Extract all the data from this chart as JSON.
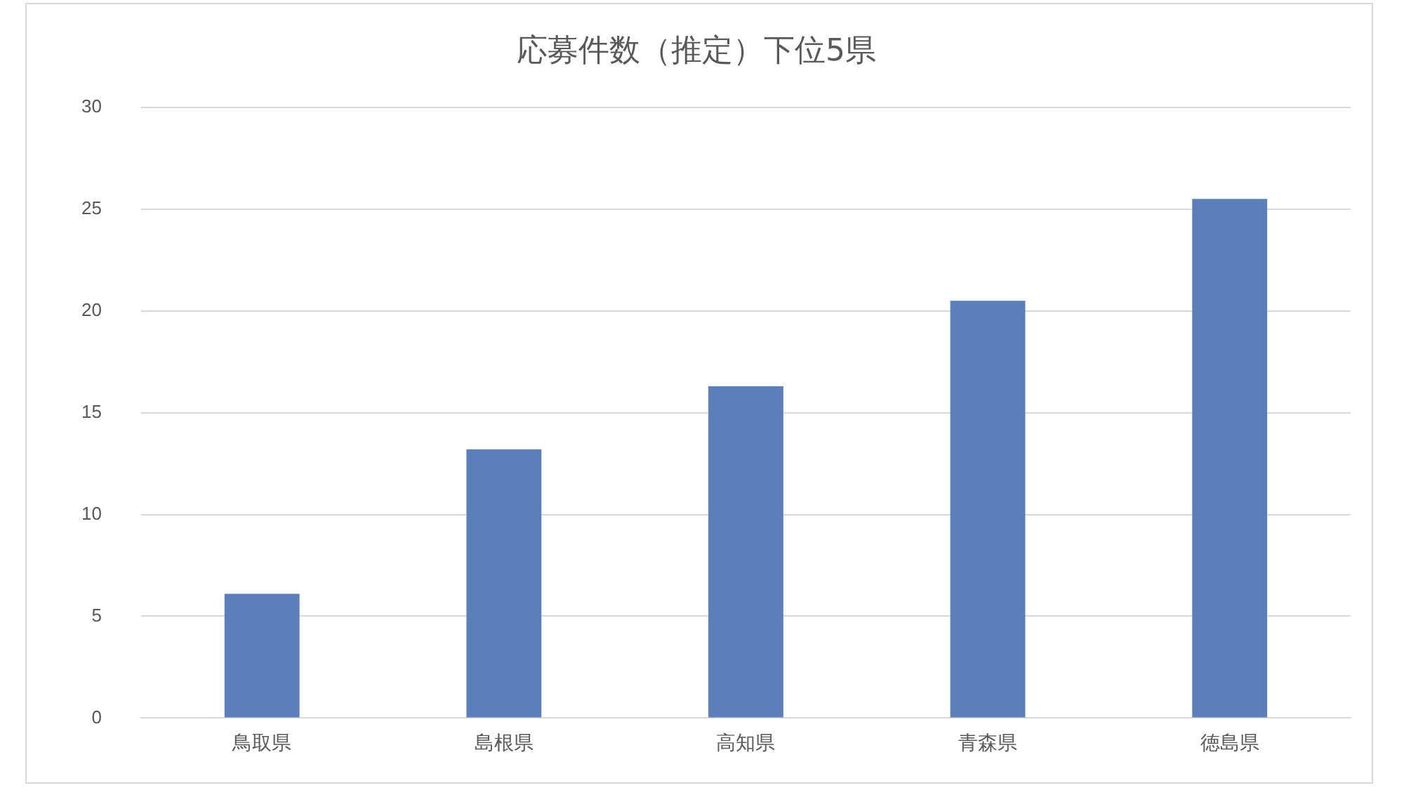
{
  "chart_data": {
    "type": "bar",
    "title": "応募件数（推定）下位5県",
    "categories": [
      "鳥取県",
      "島根県",
      "高知県",
      "青森県",
      "徳島県"
    ],
    "values": [
      6.1,
      13.2,
      16.3,
      20.5,
      25.5
    ],
    "color": "#5b7fb8",
    "ylim": [
      0,
      30
    ],
    "yticks": [
      0,
      5,
      10,
      15,
      20,
      25,
      30
    ],
    "grid": "y"
  }
}
